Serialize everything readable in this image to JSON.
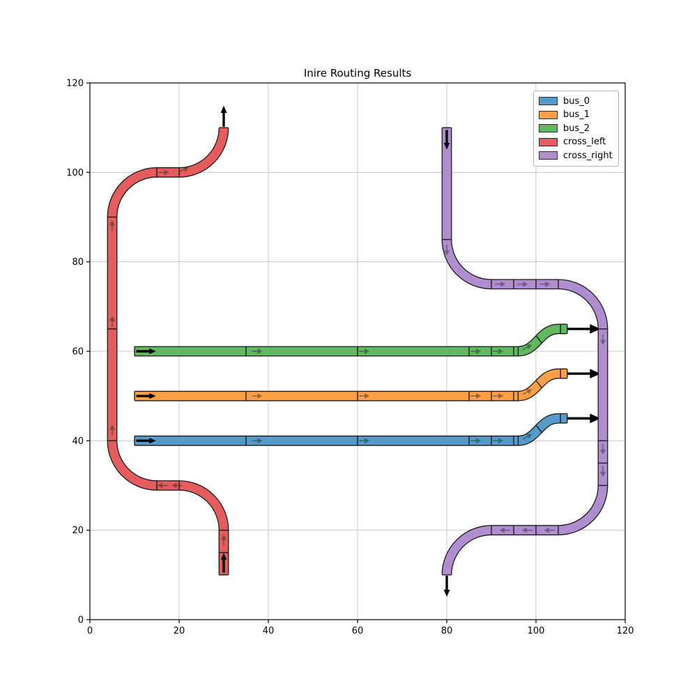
{
  "title": "Inire Routing Results",
  "axes": {
    "xlim": [
      0,
      120
    ],
    "ylim": [
      0,
      120
    ],
    "xticks": [
      0,
      20,
      40,
      60,
      80,
      100,
      120
    ],
    "yticks": [
      0,
      20,
      40,
      60,
      80,
      100,
      120
    ],
    "grid": true
  },
  "colors": {
    "bus_0": "#5799C7",
    "bus_1": "#FF9F4A",
    "bus_2": "#61B861",
    "cross_left": "#E45D5E",
    "cross_right": "#AF8DCE",
    "outline": "#1a1a1a",
    "grid": "#c6c6c6",
    "axis": "#000000",
    "arrow": "#000000"
  },
  "legend": {
    "position": "upper right",
    "entries": [
      {
        "label": "bus_0",
        "color": "#5799C7"
      },
      {
        "label": "bus_1",
        "color": "#FF9F4A"
      },
      {
        "label": "bus_2",
        "color": "#61B861"
      },
      {
        "label": "cross_left",
        "color": "#E45D5E"
      },
      {
        "label": "cross_right",
        "color": "#AF8DCE"
      }
    ]
  },
  "chart_data": {
    "type": "line",
    "title": "Inire Routing Results",
    "xlabel": "",
    "ylabel": "",
    "xlim": [
      0,
      120
    ],
    "ylim": [
      0,
      120
    ],
    "xticks": [
      0,
      20,
      40,
      60,
      80,
      100,
      120
    ],
    "yticks": [
      0,
      20,
      40,
      60,
      80,
      100,
      120
    ],
    "grid": true,
    "legend_position": "upper right",
    "corner_radius": 10,
    "tube_width": 2,
    "series": [
      {
        "name": "bus_0",
        "color": "#5799C7",
        "direction": "right",
        "waypoints": [
          [
            10,
            40
          ],
          [
            96,
            40
          ],
          [
            105,
            45
          ],
          [
            107,
            45
          ]
        ]
      },
      {
        "name": "bus_1",
        "color": "#FF9F4A",
        "direction": "right",
        "waypoints": [
          [
            10,
            50
          ],
          [
            96,
            50
          ],
          [
            105,
            55
          ],
          [
            107,
            55
          ]
        ]
      },
      {
        "name": "bus_2",
        "color": "#61B861",
        "direction": "right",
        "waypoints": [
          [
            10,
            60
          ],
          [
            96,
            60
          ],
          [
            105,
            65
          ],
          [
            107,
            65
          ]
        ]
      },
      {
        "name": "cross_left",
        "color": "#E45D5E",
        "direction": "up",
        "waypoints": [
          [
            30,
            10
          ],
          [
            30,
            30
          ],
          [
            5,
            30
          ],
          [
            5,
            100
          ],
          [
            30,
            100
          ],
          [
            30,
            110
          ]
        ]
      },
      {
        "name": "cross_right",
        "color": "#AF8DCE",
        "direction": "down",
        "waypoints": [
          [
            80,
            110
          ],
          [
            80,
            75
          ],
          [
            115,
            75
          ],
          [
            115,
            20
          ],
          [
            80,
            20
          ],
          [
            80,
            10
          ]
        ]
      }
    ]
  },
  "routes": [
    {
      "name": "bus_0",
      "color": "#5799C7",
      "path": [
        [
          "M",
          10,
          40
        ],
        [
          "L",
          96,
          40
        ],
        [
          "C",
          100.2,
          40,
          100.8,
          45,
          105,
          45
        ],
        [
          "L",
          107,
          45
        ]
      ],
      "dividers": [
        [
          10,
          40,
          0
        ],
        [
          35,
          40,
          0
        ],
        [
          60,
          40,
          0
        ],
        [
          85,
          40,
          0
        ],
        [
          90,
          40,
          0
        ],
        [
          95,
          40,
          0
        ],
        [
          96,
          40,
          0
        ],
        [
          100.7,
          42.6,
          38
        ],
        [
          105.5,
          45,
          0
        ],
        [
          107,
          45,
          0
        ]
      ],
      "chevrons": [
        [
          37.4,
          40,
          0
        ],
        [
          61.4,
          40,
          0
        ],
        [
          86.4,
          40,
          0
        ],
        [
          91.4,
          40,
          0
        ],
        [
          98,
          40.9,
          30
        ]
      ],
      "start_arrow": [
        10.4,
        40,
        0,
        4.4
      ],
      "end_arrow": [
        107.1,
        45,
        0,
        7.4
      ]
    },
    {
      "name": "bus_1",
      "color": "#FF9F4A",
      "path": [
        [
          "M",
          10,
          50
        ],
        [
          "L",
          96,
          50
        ],
        [
          "C",
          100.2,
          50,
          100.8,
          55,
          105,
          55
        ],
        [
          "L",
          107,
          55
        ]
      ],
      "dividers": [
        [
          10,
          50,
          0
        ],
        [
          35,
          50,
          0
        ],
        [
          60,
          50,
          0
        ],
        [
          85,
          50,
          0
        ],
        [
          90,
          50,
          0
        ],
        [
          95,
          50,
          0
        ],
        [
          96,
          50,
          0
        ],
        [
          100.7,
          52.6,
          38
        ],
        [
          105.5,
          55,
          0
        ],
        [
          107,
          55,
          0
        ]
      ],
      "chevrons": [
        [
          37.4,
          50,
          0
        ],
        [
          61.4,
          50,
          0
        ],
        [
          86.4,
          50,
          0
        ],
        [
          91.4,
          50,
          0
        ],
        [
          98,
          50.9,
          30
        ]
      ],
      "start_arrow": [
        10.4,
        50,
        0,
        4.4
      ],
      "end_arrow": [
        107.1,
        55,
        0,
        7.4
      ]
    },
    {
      "name": "bus_2",
      "color": "#61B861",
      "path": [
        [
          "M",
          10,
          60
        ],
        [
          "L",
          96,
          60
        ],
        [
          "C",
          100.2,
          60,
          100.8,
          65,
          105,
          65
        ],
        [
          "L",
          107,
          65
        ]
      ],
      "dividers": [
        [
          10,
          60,
          0
        ],
        [
          35,
          60,
          0
        ],
        [
          60,
          60,
          0
        ],
        [
          85,
          60,
          0
        ],
        [
          90,
          60,
          0
        ],
        [
          95,
          60,
          0
        ],
        [
          96,
          60,
          0
        ],
        [
          100.7,
          62.6,
          38
        ],
        [
          105.5,
          65,
          0
        ],
        [
          107,
          65,
          0
        ]
      ],
      "chevrons": [
        [
          37.4,
          60,
          0
        ],
        [
          61.4,
          60,
          0
        ],
        [
          86.4,
          60,
          0
        ],
        [
          91.4,
          60,
          0
        ],
        [
          98,
          60.9,
          30
        ]
      ],
      "start_arrow": [
        10.4,
        60,
        0,
        4.4
      ],
      "end_arrow": [
        107.1,
        65,
        0,
        7.4
      ]
    },
    {
      "name": "cross_left",
      "color": "#E45D5E",
      "path": [
        [
          "M",
          30,
          10
        ],
        [
          "L",
          30,
          20
        ],
        [
          "A",
          10,
          0,
          20,
          30
        ],
        [
          "L",
          15,
          30
        ],
        [
          "A",
          10,
          1,
          5,
          40
        ],
        [
          "L",
          5,
          90
        ],
        [
          "A",
          10,
          1,
          15,
          100
        ],
        [
          "L",
          20,
          100
        ],
        [
          "A",
          10,
          0,
          30,
          110
        ]
      ],
      "dividers": [
        [
          30,
          10,
          90
        ],
        [
          30,
          15,
          90
        ],
        [
          30,
          20,
          90
        ],
        [
          20,
          30,
          0
        ],
        [
          15,
          30,
          0
        ],
        [
          5,
          40,
          90
        ],
        [
          5,
          65,
          90
        ],
        [
          5,
          90,
          90
        ],
        [
          15,
          100,
          0
        ],
        [
          20,
          100,
          0
        ],
        [
          30,
          110,
          90
        ]
      ],
      "chevrons": [
        [
          30,
          17.7,
          90
        ],
        [
          19.6,
          30,
          180
        ],
        [
          16.4,
          30,
          180
        ],
        [
          5,
          42.3,
          90
        ],
        [
          5,
          66.6,
          90
        ],
        [
          5,
          88,
          90
        ],
        [
          16.5,
          100,
          0
        ],
        [
          21,
          100.6,
          25
        ]
      ],
      "start_arrow": [
        30,
        10.5,
        90,
        4.4
      ],
      "end_arrow": [
        30,
        110.2,
        90,
        4.7
      ]
    },
    {
      "name": "cross_right",
      "color": "#AF8DCE",
      "path": [
        [
          "M",
          80,
          110
        ],
        [
          "L",
          80,
          85
        ],
        [
          "A",
          10,
          0,
          90,
          75
        ],
        [
          "L",
          105,
          75
        ],
        [
          "A",
          10,
          1,
          115,
          65
        ],
        [
          "L",
          115,
          30
        ],
        [
          "A",
          10,
          1,
          105,
          20
        ],
        [
          "L",
          90,
          20
        ],
        [
          "A",
          10,
          0,
          80,
          10
        ]
      ],
      "dividers": [
        [
          80,
          110,
          90
        ],
        [
          80,
          85,
          90
        ],
        [
          90,
          75,
          0
        ],
        [
          95,
          75,
          0
        ],
        [
          100,
          75,
          0
        ],
        [
          105,
          75,
          0
        ],
        [
          115,
          65,
          90
        ],
        [
          115,
          40,
          90
        ],
        [
          115,
          35,
          90
        ],
        [
          115,
          30,
          90
        ],
        [
          105,
          20,
          0
        ],
        [
          100,
          20,
          0
        ],
        [
          95,
          20,
          0
        ],
        [
          90,
          20,
          0
        ],
        [
          80,
          10,
          90
        ]
      ],
      "chevrons": [
        [
          80,
          82.7,
          270
        ],
        [
          91.9,
          75,
          0
        ],
        [
          96.9,
          75,
          0
        ],
        [
          101.9,
          75,
          0
        ],
        [
          115,
          62.7,
          270
        ],
        [
          115,
          38.2,
          270
        ],
        [
          115,
          33.2,
          270
        ],
        [
          103.1,
          20,
          180
        ],
        [
          98.1,
          20,
          180
        ],
        [
          93.1,
          20,
          180
        ]
      ],
      "start_arrow": [
        80,
        109.5,
        270,
        4.4
      ],
      "end_arrow": [
        80,
        9.8,
        270,
        4.7
      ]
    }
  ]
}
